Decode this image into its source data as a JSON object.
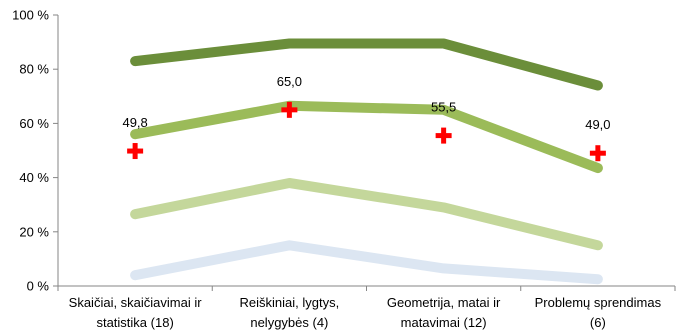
{
  "chart_data": {
    "type": "line",
    "title": "",
    "xlabel": "",
    "ylabel": "",
    "ylim": [
      0,
      100
    ],
    "y_ticks": [
      "0 %",
      "20 %",
      "40 %",
      "60 %",
      "80 %",
      "100 %"
    ],
    "y_tick_values": [
      0,
      20,
      40,
      60,
      80,
      100
    ],
    "grid": false,
    "categories": [
      [
        "Skaičiai, skaičiavimai ir",
        "statistika (18)"
      ],
      [
        "Reiškiniai, lygtys,",
        "nelygybės (4)"
      ],
      [
        "Geometrija, matai ir",
        "matavimai (12)"
      ],
      [
        "Problemų sprendimas",
        "(6)"
      ]
    ],
    "series": [
      {
        "values": [
          83,
          89.5,
          89.5,
          74
        ],
        "color": "#6b8e3a"
      },
      {
        "values": [
          56,
          66.5,
          65,
          43.5
        ],
        "color": "#9bbb59"
      },
      {
        "values": [
          26.5,
          38,
          29,
          15
        ],
        "color": "#c4d79b"
      },
      {
        "values": [
          4,
          15,
          6.5,
          2.5
        ],
        "color": "#dce6f2"
      }
    ],
    "markers": {
      "symbol": "+",
      "color": "#ff0000",
      "values": [
        49.8,
        65.0,
        55.5,
        49.0
      ],
      "labels": [
        "49,8",
        "65,0",
        "55,5",
        "49,0"
      ]
    }
  }
}
